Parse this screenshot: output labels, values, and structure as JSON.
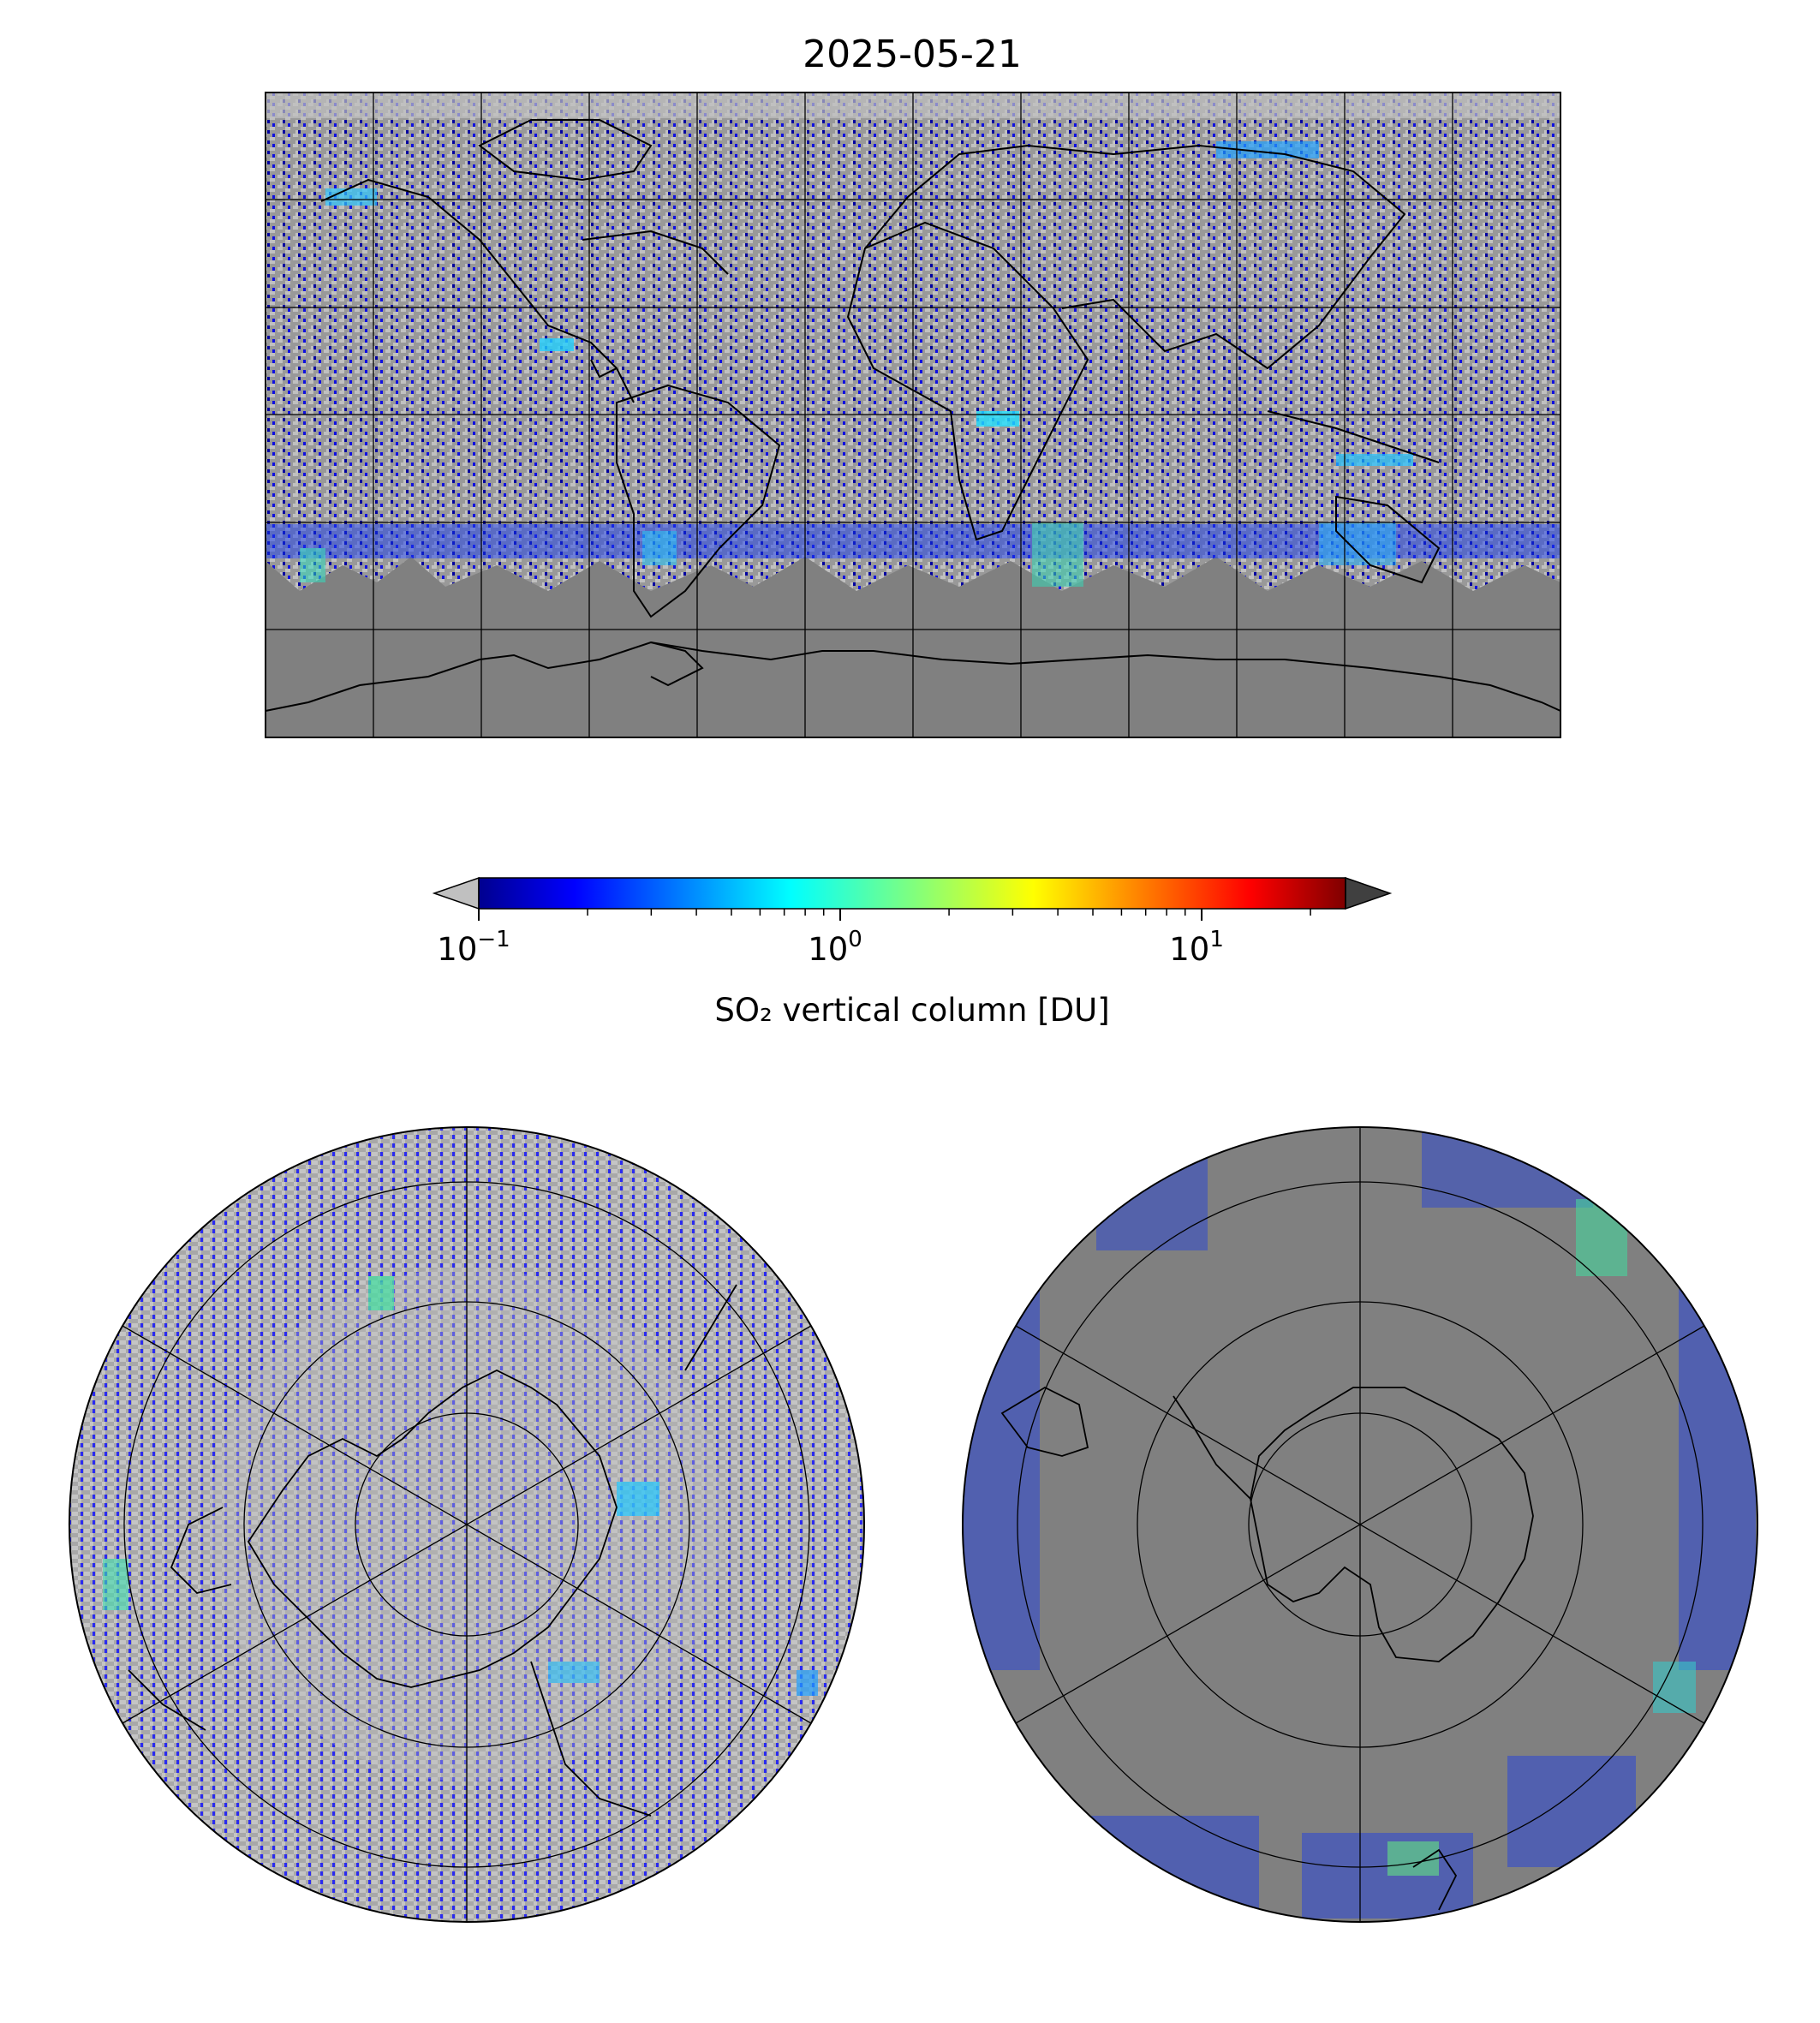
{
  "figure": {
    "title": "2025-05-21"
  },
  "colorbar": {
    "label": "SO₂ vertical column [DU]",
    "scale": "log",
    "range": [
      0.1,
      25
    ],
    "colormap": "jet",
    "under_color": "#c0c0c0",
    "over_color": "#404040",
    "ticks": [
      {
        "base": "10",
        "exp": "−1",
        "value": 0.1
      },
      {
        "base": "10",
        "exp": "0",
        "value": 1
      },
      {
        "base": "10",
        "exp": "1",
        "value": 10
      }
    ]
  },
  "colors": {
    "no_data": "#808080",
    "below_range": "#c0c0c0",
    "coastline": "#000000",
    "grid": "#000000"
  },
  "maps": [
    {
      "id": "global",
      "projection": "plate-carree",
      "gridlines": {
        "lon_step_deg": 30,
        "lat_step_deg": 30
      }
    },
    {
      "id": "north-polar",
      "projection": "north-polar-stereographic",
      "gridlines": {
        "lon_step_deg": 60,
        "lat_rings_deg": [
          80,
          70,
          60,
          50
        ]
      }
    },
    {
      "id": "south-polar",
      "projection": "south-polar-stereographic",
      "gridlines": {
        "lon_step_deg": 60,
        "lat_rings_deg": [
          -80,
          -70,
          -60,
          -50
        ]
      }
    }
  ]
}
